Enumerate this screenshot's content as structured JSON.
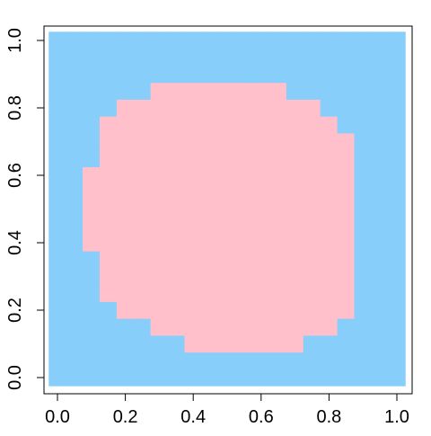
{
  "chart_data": {
    "type": "scatter",
    "x": [
      0,
      0.05,
      0.1,
      0.15,
      0.2,
      0.25,
      0.3,
      0.35,
      0.4,
      0.45,
      0.5,
      0.55,
      0.6,
      0.65,
      0.7,
      0.75,
      0.8,
      0.85,
      0.9,
      0.95,
      1
    ],
    "y": [
      0,
      0.05,
      0.1,
      0.15,
      0.2,
      0.25,
      0.3,
      0.35,
      0.4,
      0.45,
      0.5,
      0.55,
      0.6,
      0.65,
      0.7,
      0.75,
      0.8,
      0.85,
      0.9,
      0.95,
      1
    ],
    "series": [
      {
        "color": "#87cefa"
      },
      {
        "color": "#ffc0cb"
      }
    ],
    "classes": [
      [
        0,
        0,
        0,
        0,
        0,
        0,
        0,
        0,
        0,
        0,
        0,
        0,
        0,
        0,
        0,
        0,
        0,
        0,
        0,
        0,
        0
      ],
      [
        0,
        0,
        0,
        0,
        0,
        0,
        0,
        0,
        0,
        0,
        0,
        0,
        0,
        0,
        0,
        0,
        0,
        0,
        0,
        0,
        0
      ],
      [
        0,
        0,
        0,
        0,
        0,
        0,
        0,
        0,
        1,
        1,
        1,
        1,
        1,
        1,
        1,
        0,
        0,
        0,
        0,
        0,
        0
      ],
      [
        0,
        0,
        0,
        0,
        0,
        0,
        1,
        1,
        1,
        1,
        1,
        1,
        1,
        1,
        1,
        1,
        1,
        0,
        0,
        0,
        0
      ],
      [
        0,
        0,
        0,
        0,
        1,
        1,
        1,
        1,
        1,
        1,
        1,
        1,
        1,
        1,
        1,
        1,
        1,
        1,
        0,
        0,
        0
      ],
      [
        0,
        0,
        0,
        1,
        1,
        1,
        1,
        1,
        1,
        1,
        1,
        1,
        1,
        1,
        1,
        1,
        1,
        1,
        0,
        0,
        0
      ],
      [
        0,
        0,
        0,
        1,
        1,
        1,
        1,
        1,
        1,
        1,
        1,
        1,
        1,
        1,
        1,
        1,
        1,
        1,
        0,
        0,
        0
      ],
      [
        0,
        0,
        0,
        1,
        1,
        1,
        1,
        1,
        1,
        1,
        1,
        1,
        1,
        1,
        1,
        1,
        1,
        1,
        0,
        0,
        0
      ],
      [
        0,
        0,
        1,
        1,
        1,
        1,
        1,
        1,
        1,
        1,
        1,
        1,
        1,
        1,
        1,
        1,
        1,
        1,
        0,
        0,
        0
      ],
      [
        0,
        0,
        1,
        1,
        1,
        1,
        1,
        1,
        1,
        1,
        1,
        1,
        1,
        1,
        1,
        1,
        1,
        1,
        0,
        0,
        0
      ],
      [
        0,
        0,
        1,
        1,
        1,
        1,
        1,
        1,
        1,
        1,
        1,
        1,
        1,
        1,
        1,
        1,
        1,
        1,
        0,
        0,
        0
      ],
      [
        0,
        0,
        1,
        1,
        1,
        1,
        1,
        1,
        1,
        1,
        1,
        1,
        1,
        1,
        1,
        1,
        1,
        1,
        0,
        0,
        0
      ],
      [
        0,
        0,
        1,
        1,
        1,
        1,
        1,
        1,
        1,
        1,
        1,
        1,
        1,
        1,
        1,
        1,
        1,
        1,
        0,
        0,
        0
      ],
      [
        0,
        0,
        0,
        1,
        1,
        1,
        1,
        1,
        1,
        1,
        1,
        1,
        1,
        1,
        1,
        1,
        1,
        1,
        0,
        0,
        0
      ],
      [
        0,
        0,
        0,
        1,
        1,
        1,
        1,
        1,
        1,
        1,
        1,
        1,
        1,
        1,
        1,
        1,
        1,
        1,
        0,
        0,
        0
      ],
      [
        0,
        0,
        0,
        1,
        1,
        1,
        1,
        1,
        1,
        1,
        1,
        1,
        1,
        1,
        1,
        1,
        1,
        0,
        0,
        0,
        0
      ],
      [
        0,
        0,
        0,
        0,
        1,
        1,
        1,
        1,
        1,
        1,
        1,
        1,
        1,
        1,
        1,
        1,
        0,
        0,
        0,
        0,
        0
      ],
      [
        0,
        0,
        0,
        0,
        0,
        0,
        1,
        1,
        1,
        1,
        1,
        1,
        1,
        1,
        0,
        0,
        0,
        0,
        0,
        0,
        0
      ],
      [
        0,
        0,
        0,
        0,
        0,
        0,
        0,
        0,
        0,
        0,
        0,
        0,
        0,
        0,
        0,
        0,
        0,
        0,
        0,
        0,
        0
      ],
      [
        0,
        0,
        0,
        0,
        0,
        0,
        0,
        0,
        0,
        0,
        0,
        0,
        0,
        0,
        0,
        0,
        0,
        0,
        0,
        0,
        0
      ],
      [
        0,
        0,
        0,
        0,
        0,
        0,
        0,
        0,
        0,
        0,
        0,
        0,
        0,
        0,
        0,
        0,
        0,
        0,
        0,
        0,
        0
      ]
    ],
    "xlim": [
      0,
      1
    ],
    "ylim": [
      0,
      1
    ],
    "xticks": [
      {
        "value": 0,
        "label": "0.0"
      },
      {
        "value": 0.2,
        "label": "0.2"
      },
      {
        "value": 0.4,
        "label": "0.4"
      },
      {
        "value": 0.6,
        "label": "0.6"
      },
      {
        "value": 0.8,
        "label": "0.8"
      },
      {
        "value": 1,
        "label": "1.0"
      }
    ],
    "yticks": [
      {
        "value": 0,
        "label": "0.0"
      },
      {
        "value": 0.2,
        "label": "0.2"
      },
      {
        "value": 0.4,
        "label": "0.4"
      },
      {
        "value": 0.6,
        "label": "0.6"
      },
      {
        "value": 0.8,
        "label": "0.8"
      },
      {
        "value": 1,
        "label": "1.0"
      }
    ]
  }
}
